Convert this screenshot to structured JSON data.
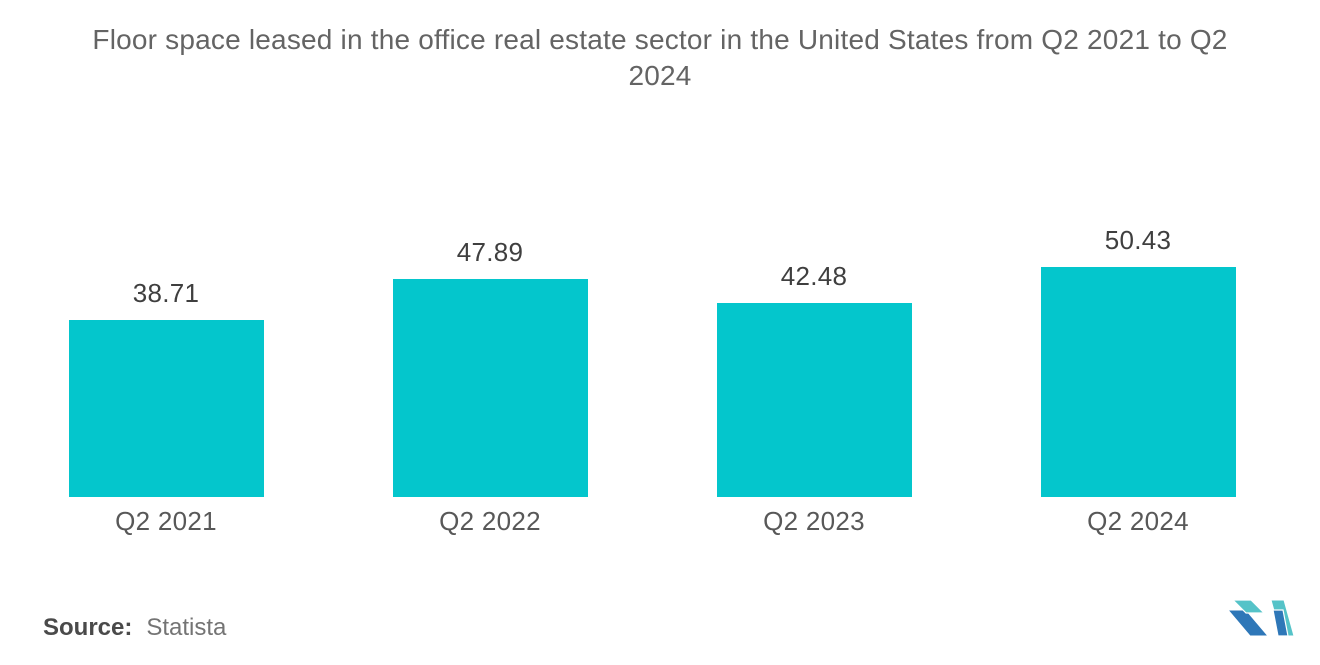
{
  "chart_data": {
    "type": "bar",
    "title": "Floor space leased in the office real estate sector in the United States from Q2 2021 to Q2 2024",
    "categories": [
      "Q2 2021",
      "Q2 2022",
      "Q2 2023",
      "Q2 2024"
    ],
    "values": [
      38.71,
      47.89,
      42.48,
      50.43
    ],
    "bar_color": "#04C6CC",
    "xlabel": "",
    "ylabel": "",
    "ylim": [
      0,
      55
    ],
    "grid": false,
    "legend": false,
    "value_labels_shown": true
  },
  "source": {
    "label": "Source:",
    "name": "Statista"
  },
  "logo": {
    "name": "mordor-intelligence-logo",
    "teal": "#55C3C8",
    "blue": "#2E77B8"
  }
}
